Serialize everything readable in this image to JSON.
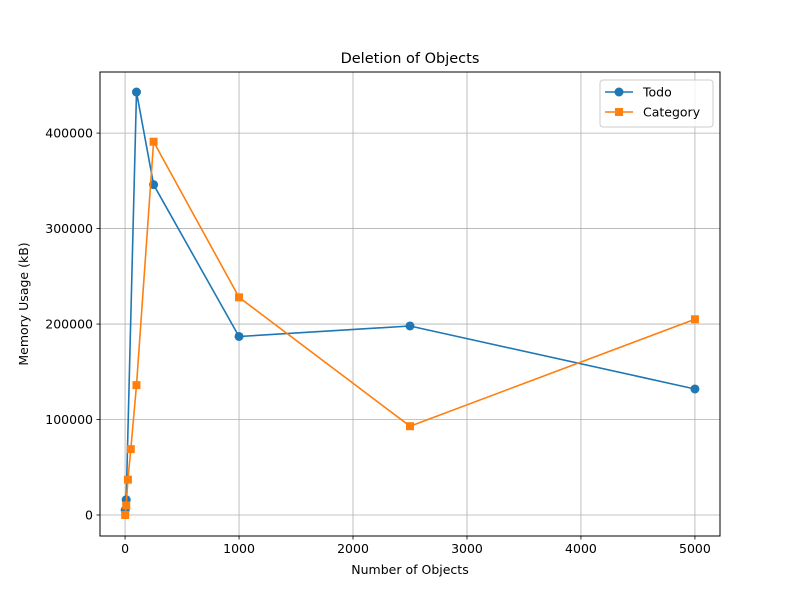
{
  "chart_data": {
    "type": "line",
    "title": "Deletion of Objects",
    "xlabel": "Number of Objects",
    "ylabel": "Memory Usage (kB)",
    "xlim": [
      -220,
      5220
    ],
    "ylim": [
      -22000,
      464000
    ],
    "xticks": [
      0,
      1000,
      2000,
      3000,
      4000,
      5000
    ],
    "yticks": [
      0,
      100000,
      200000,
      300000,
      400000
    ],
    "grid": true,
    "legend_position": "top-right",
    "series": [
      {
        "name": "Todo",
        "color": "#1f77b4",
        "marker": "circle",
        "points": [
          [
            1,
            5000
          ],
          [
            10,
            16000
          ],
          [
            100,
            443000
          ],
          [
            250,
            346000
          ],
          [
            1000,
            187000
          ],
          [
            2500,
            198000
          ],
          [
            5000,
            132000
          ]
        ]
      },
      {
        "name": "Category",
        "color": "#ff7f0e",
        "marker": "square",
        "points": [
          [
            1,
            0
          ],
          [
            10,
            10000
          ],
          [
            25,
            37000
          ],
          [
            50,
            69000
          ],
          [
            100,
            136000
          ],
          [
            250,
            391000
          ],
          [
            1000,
            228000
          ],
          [
            2500,
            93000
          ],
          [
            5000,
            205000
          ]
        ]
      }
    ]
  }
}
